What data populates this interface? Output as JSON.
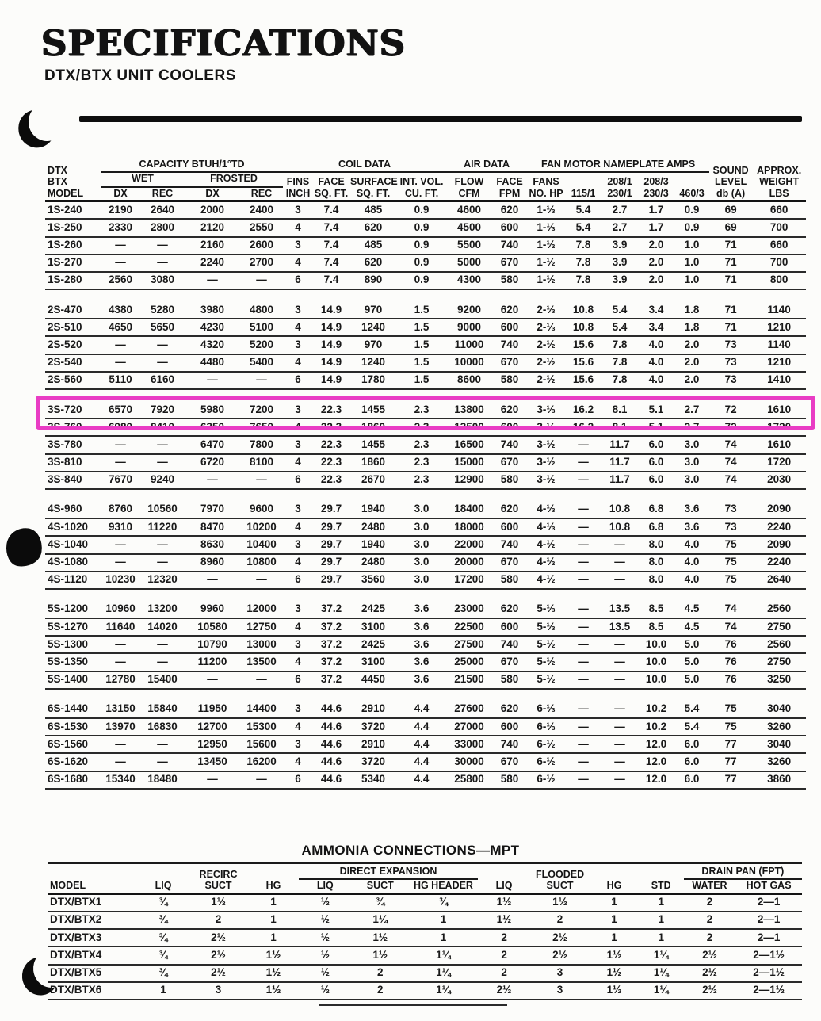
{
  "page": {
    "title": "SPECIFICATIONS",
    "subtitle": "DTX/BTX UNIT COOLERS"
  },
  "spec_table": {
    "header": {
      "model_lines": [
        "DTX",
        "BTX",
        "MODEL"
      ],
      "capacity_group": "CAPACITY BTUH/1°TD",
      "wet": "WET",
      "frosted": "FROSTED",
      "dx": "DX",
      "rec": "REC",
      "coil_group": "COIL DATA",
      "fins": [
        "FINS",
        "INCH"
      ],
      "face_sqft": [
        "FACE",
        "SQ. FT."
      ],
      "surface_sqft": [
        "SURFACE",
        "SQ. FT."
      ],
      "int_vol": [
        "INT. VOL.",
        "CU. FT."
      ],
      "air_group": "AIR DATA",
      "flow_cfm": [
        "FLOW",
        "CFM"
      ],
      "face_fpm": [
        "FACE",
        "FPM"
      ],
      "fan_group": "FAN MOTOR NAMEPLATE AMPS",
      "fans_no_hp": [
        "FANS",
        "NO. HP"
      ],
      "amps_115": "115/1",
      "amps_208_1": [
        "208/1",
        "230/1"
      ],
      "amps_208_3": [
        "208/3",
        "230/3"
      ],
      "amps_460": "460/3",
      "sound": [
        "SOUND",
        "LEVEL",
        "db (A)"
      ],
      "weight": [
        "APPROX.",
        "WEIGHT",
        "LBS"
      ]
    },
    "highlight": {
      "model": "3S-720",
      "color": "#e93cc4"
    },
    "sections": [
      {
        "rows": [
          [
            "1S-240",
            "2190",
            "2640",
            "2000",
            "2400",
            "3",
            "7.4",
            "485",
            "0.9",
            "4600",
            "620",
            "1-⅓",
            "5.4",
            "2.7",
            "1.7",
            "0.9",
            "69",
            "660"
          ],
          [
            "1S-250",
            "2330",
            "2800",
            "2120",
            "2550",
            "4",
            "7.4",
            "620",
            "0.9",
            "4500",
            "600",
            "1-⅓",
            "5.4",
            "2.7",
            "1.7",
            "0.9",
            "69",
            "700"
          ],
          [
            "1S-260",
            "—",
            "—",
            "2160",
            "2600",
            "3",
            "7.4",
            "485",
            "0.9",
            "5500",
            "740",
            "1-½",
            "7.8",
            "3.9",
            "2.0",
            "1.0",
            "71",
            "660"
          ],
          [
            "1S-270",
            "—",
            "—",
            "2240",
            "2700",
            "4",
            "7.4",
            "620",
            "0.9",
            "5000",
            "670",
            "1-½",
            "7.8",
            "3.9",
            "2.0",
            "1.0",
            "71",
            "700"
          ],
          [
            "1S-280",
            "2560",
            "3080",
            "—",
            "—",
            "6",
            "7.4",
            "890",
            "0.9",
            "4300",
            "580",
            "1-½",
            "7.8",
            "3.9",
            "2.0",
            "1.0",
            "71",
            "800"
          ]
        ]
      },
      {
        "rows": [
          [
            "2S-470",
            "4380",
            "5280",
            "3980",
            "4800",
            "3",
            "14.9",
            "970",
            "1.5",
            "9200",
            "620",
            "2-⅓",
            "10.8",
            "5.4",
            "3.4",
            "1.8",
            "71",
            "1140"
          ],
          [
            "2S-510",
            "4650",
            "5650",
            "4230",
            "5100",
            "4",
            "14.9",
            "1240",
            "1.5",
            "9000",
            "600",
            "2-⅓",
            "10.8",
            "5.4",
            "3.4",
            "1.8",
            "71",
            "1210"
          ],
          [
            "2S-520",
            "—",
            "—",
            "4320",
            "5200",
            "3",
            "14.9",
            "970",
            "1.5",
            "11000",
            "740",
            "2-½",
            "15.6",
            "7.8",
            "4.0",
            "2.0",
            "73",
            "1140"
          ],
          [
            "2S-540",
            "—",
            "—",
            "4480",
            "5400",
            "4",
            "14.9",
            "1240",
            "1.5",
            "10000",
            "670",
            "2-½",
            "15.6",
            "7.8",
            "4.0",
            "2.0",
            "73",
            "1210"
          ],
          [
            "2S-560",
            "5110",
            "6160",
            "—",
            "—",
            "6",
            "14.9",
            "1780",
            "1.5",
            "8600",
            "580",
            "2-½",
            "15.6",
            "7.8",
            "4.0",
            "2.0",
            "73",
            "1410"
          ]
        ]
      },
      {
        "rows": [
          [
            "3S-720",
            "6570",
            "7920",
            "5980",
            "7200",
            "3",
            "22.3",
            "1455",
            "2.3",
            "13800",
            "620",
            "3-⅓",
            "16.2",
            "8.1",
            "5.1",
            "2.7",
            "72",
            "1610"
          ],
          [
            "3S-760",
            "6980",
            "8410",
            "6350",
            "7650",
            "4",
            "22.3",
            "1860",
            "2.3",
            "13500",
            "600",
            "3-⅓",
            "16.2",
            "8.1",
            "5.1",
            "2.7",
            "72",
            "1720"
          ],
          [
            "3S-780",
            "—",
            "—",
            "6470",
            "7800",
            "3",
            "22.3",
            "1455",
            "2.3",
            "16500",
            "740",
            "3-½",
            "—",
            "11.7",
            "6.0",
            "3.0",
            "74",
            "1610"
          ],
          [
            "3S-810",
            "—",
            "—",
            "6720",
            "8100",
            "4",
            "22.3",
            "1860",
            "2.3",
            "15000",
            "670",
            "3-½",
            "—",
            "11.7",
            "6.0",
            "3.0",
            "74",
            "1720"
          ],
          [
            "3S-840",
            "7670",
            "9240",
            "—",
            "—",
            "6",
            "22.3",
            "2670",
            "2.3",
            "12900",
            "580",
            "3-½",
            "—",
            "11.7",
            "6.0",
            "3.0",
            "74",
            "2030"
          ]
        ]
      },
      {
        "rows": [
          [
            "4S-960",
            "8760",
            "10560",
            "7970",
            "9600",
            "3",
            "29.7",
            "1940",
            "3.0",
            "18400",
            "620",
            "4-⅓",
            "—",
            "10.8",
            "6.8",
            "3.6",
            "73",
            "2090"
          ],
          [
            "4S-1020",
            "9310",
            "11220",
            "8470",
            "10200",
            "4",
            "29.7",
            "2480",
            "3.0",
            "18000",
            "600",
            "4-⅓",
            "—",
            "10.8",
            "6.8",
            "3.6",
            "73",
            "2240"
          ],
          [
            "4S-1040",
            "—",
            "—",
            "8630",
            "10400",
            "3",
            "29.7",
            "1940",
            "3.0",
            "22000",
            "740",
            "4-½",
            "—",
            "—",
            "8.0",
            "4.0",
            "75",
            "2090"
          ],
          [
            "4S-1080",
            "—",
            "—",
            "8960",
            "10800",
            "4",
            "29.7",
            "2480",
            "3.0",
            "20000",
            "670",
            "4-½",
            "—",
            "—",
            "8.0",
            "4.0",
            "75",
            "2240"
          ],
          [
            "4S-1120",
            "10230",
            "12320",
            "—",
            "—",
            "6",
            "29.7",
            "3560",
            "3.0",
            "17200",
            "580",
            "4-½",
            "—",
            "—",
            "8.0",
            "4.0",
            "75",
            "2640"
          ]
        ]
      },
      {
        "rows": [
          [
            "5S-1200",
            "10960",
            "13200",
            "9960",
            "12000",
            "3",
            "37.2",
            "2425",
            "3.6",
            "23000",
            "620",
            "5-⅓",
            "—",
            "13.5",
            "8.5",
            "4.5",
            "74",
            "2560"
          ],
          [
            "5S-1270",
            "11640",
            "14020",
            "10580",
            "12750",
            "4",
            "37.2",
            "3100",
            "3.6",
            "22500",
            "600",
            "5-⅓",
            "—",
            "13.5",
            "8.5",
            "4.5",
            "74",
            "2750"
          ],
          [
            "5S-1300",
            "—",
            "—",
            "10790",
            "13000",
            "3",
            "37.2",
            "2425",
            "3.6",
            "27500",
            "740",
            "5-½",
            "—",
            "—",
            "10.0",
            "5.0",
            "76",
            "2560"
          ],
          [
            "5S-1350",
            "—",
            "—",
            "11200",
            "13500",
            "4",
            "37.2",
            "3100",
            "3.6",
            "25000",
            "670",
            "5-½",
            "—",
            "—",
            "10.0",
            "5.0",
            "76",
            "2750"
          ],
          [
            "5S-1400",
            "12780",
            "15400",
            "—",
            "—",
            "6",
            "37.2",
            "4450",
            "3.6",
            "21500",
            "580",
            "5-½",
            "—",
            "—",
            "10.0",
            "5.0",
            "76",
            "3250"
          ]
        ]
      },
      {
        "rows": [
          [
            "6S-1440",
            "13150",
            "15840",
            "11950",
            "14400",
            "3",
            "44.6",
            "2910",
            "4.4",
            "27600",
            "620",
            "6-⅓",
            "—",
            "—",
            "10.2",
            "5.4",
            "75",
            "3040"
          ],
          [
            "6S-1530",
            "13970",
            "16830",
            "12700",
            "15300",
            "4",
            "44.6",
            "3720",
            "4.4",
            "27000",
            "600",
            "6-⅓",
            "—",
            "—",
            "10.2",
            "5.4",
            "75",
            "3260"
          ],
          [
            "6S-1560",
            "—",
            "—",
            "12950",
            "15600",
            "3",
            "44.6",
            "2910",
            "4.4",
            "33000",
            "740",
            "6-½",
            "—",
            "—",
            "12.0",
            "6.0",
            "77",
            "3040"
          ],
          [
            "6S-1620",
            "—",
            "—",
            "13450",
            "16200",
            "4",
            "44.6",
            "3720",
            "4.4",
            "30000",
            "670",
            "6-½",
            "—",
            "—",
            "12.0",
            "6.0",
            "77",
            "3260"
          ],
          [
            "6S-1680",
            "15340",
            "18480",
            "—",
            "—",
            "6",
            "44.6",
            "5340",
            "4.4",
            "25800",
            "580",
            "6-½",
            "—",
            "—",
            "12.0",
            "6.0",
            "77",
            "3860"
          ]
        ]
      }
    ]
  },
  "ammonia_table": {
    "title": "AMMONIA CONNECTIONS—MPT",
    "header": {
      "model": "MODEL",
      "liq": "LIQ",
      "recirc_suct": [
        "RECIRC",
        "SUCT"
      ],
      "hg": "HG",
      "direct_expansion_group": "DIRECT EXPANSION",
      "suct": "SUCT",
      "hg_header": "HG HEADER",
      "flooded_suct": [
        "FLOODED",
        "SUCT"
      ],
      "std": "STD",
      "drain_pan_group": "DRAIN PAN (FPT)",
      "water": "WATER",
      "hot_gas": "HOT GAS"
    },
    "rows": [
      [
        "DTX/BTX1",
        "¾",
        "1½",
        "1",
        "½",
        "¾",
        "¾",
        "1½",
        "1½",
        "1",
        "1",
        "2",
        "2—1"
      ],
      [
        "DTX/BTX2",
        "¾",
        "2",
        "1",
        "½",
        "1¼",
        "1",
        "1½",
        "2",
        "1",
        "1",
        "2",
        "2—1"
      ],
      [
        "DTX/BTX3",
        "¾",
        "2½",
        "1",
        "½",
        "1½",
        "1",
        "2",
        "2½",
        "1",
        "1",
        "2",
        "2—1"
      ],
      [
        "DTX/BTX4",
        "¾",
        "2½",
        "1½",
        "½",
        "1½",
        "1¼",
        "2",
        "2½",
        "1½",
        "1¼",
        "2½",
        "2—1½"
      ],
      [
        "DTX/BTX5",
        "¾",
        "2½",
        "1½",
        "½",
        "2",
        "1¼",
        "2",
        "3",
        "1½",
        "1¼",
        "2½",
        "2—1½"
      ],
      [
        "DTX/BTX6",
        "1",
        "3",
        "1½",
        "½",
        "2",
        "1¼",
        "2½",
        "3",
        "1½",
        "1¼",
        "2½",
        "2—1½"
      ]
    ]
  }
}
